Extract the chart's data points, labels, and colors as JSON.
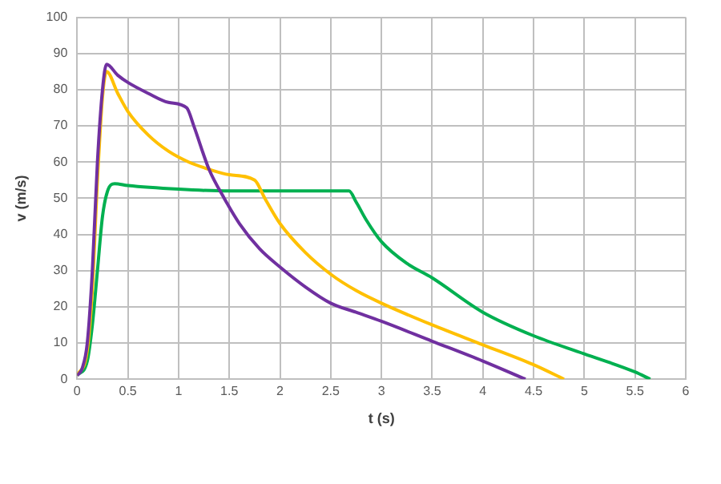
{
  "chart_data": {
    "type": "line",
    "xlabel": "t (s)",
    "ylabel": "v (m/s)",
    "xlim": [
      0,
      6
    ],
    "ylim": [
      0,
      100
    ],
    "xticks": [
      0,
      0.5,
      1,
      1.5,
      2,
      2.5,
      3,
      3.5,
      4,
      4.5,
      5,
      5.5,
      6
    ],
    "yticks": [
      0,
      10,
      20,
      30,
      40,
      50,
      60,
      70,
      80,
      90,
      100
    ],
    "grid": true,
    "legend": false,
    "marker": "none",
    "line_style": "solid",
    "series": [
      {
        "color": "#7030a0",
        "x": [
          0,
          0.05,
          0.1,
          0.15,
          0.2,
          0.25,
          0.29,
          0.4,
          0.5,
          0.7,
          0.9,
          1.08,
          1.15,
          1.3,
          1.45,
          1.6,
          1.8,
          2,
          2.25,
          2.5,
          2.75,
          3,
          3.5,
          4,
          4.42
        ],
        "values": [
          1,
          3,
          10,
          30,
          60,
          80,
          87,
          84,
          82,
          79,
          76.5,
          75,
          70,
          58,
          50,
          43,
          36,
          31,
          25.5,
          21,
          18.5,
          16,
          10.5,
          5,
          0
        ]
      },
      {
        "color": "#ffc000",
        "x": [
          0,
          0.1,
          0.15,
          0.2,
          0.25,
          0.29,
          0.4,
          0.5,
          0.7,
          0.9,
          1.1,
          1.3,
          1.5,
          1.75,
          1.85,
          2,
          2.25,
          2.5,
          2.75,
          3,
          3.5,
          4,
          4.5,
          4.8
        ],
        "values": [
          1,
          8,
          25,
          55,
          78,
          85,
          79,
          74,
          67.5,
          63,
          60,
          58,
          56.5,
          55,
          50,
          43,
          35,
          29,
          24.5,
          21,
          15,
          9.5,
          4,
          0
        ]
      },
      {
        "color": "#00b050",
        "x": [
          0,
          0.1,
          0.15,
          0.2,
          0.25,
          0.3,
          0.37,
          0.5,
          1,
          1.5,
          2,
          2.5,
          2.68,
          2.75,
          2.85,
          3,
          3.25,
          3.5,
          4,
          4.5,
          5,
          5.5,
          5.65
        ],
        "values": [
          1,
          5,
          15,
          30,
          45,
          52,
          54,
          53.5,
          52.5,
          52,
          52,
          52,
          52,
          49,
          44,
          38,
          32,
          28,
          18.5,
          12,
          7,
          2,
          0
        ]
      }
    ]
  }
}
